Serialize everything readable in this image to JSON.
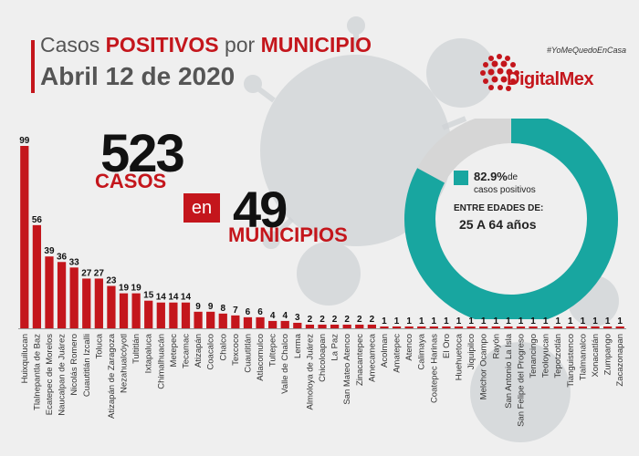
{
  "header": {
    "title_part1": "Casos ",
    "title_positivos": "POSITIVOS",
    "title_por": " por ",
    "title_municipio": "MUNICIPIO",
    "date": "Abril 12 de 2020"
  },
  "brand": {
    "hashtag": "#YoMeQuedoEnCasa",
    "name": "DigitalMex"
  },
  "summary": {
    "cases_total": "523",
    "cases_label": "CASOS",
    "connector": "en",
    "municipalities_total": "49",
    "municipalities_label": "MUNICIPIOS"
  },
  "age_stat": {
    "percent": "82.9%",
    "percent_value": 82.9,
    "label_line1": "de",
    "label_line2": "casos positivos",
    "ages_label": "ENTRE EDADES DE:",
    "ages_range": "25 A 64 años"
  },
  "colors": {
    "bar": "#c4161c",
    "donut": "#18a6a0",
    "text": "#111111",
    "virus_bg": "#cfd3d6"
  },
  "chart_data": {
    "type": "bar",
    "title": "Casos POSITIVOS por MUNICIPIO",
    "categories": [
      "Huixquilucan",
      "Tlalnepantla de Baz",
      "Ecatepec de Morelos",
      "Naucalpan de Juárez",
      "Nicolás Romero",
      "Cuautitlán Izcalli",
      "Toluca",
      "Atizapán de Zaragoza",
      "Nezahualcóyotl",
      "Tultitlán",
      "Ixtapaluca",
      "Chimalhuacán",
      "Metepec",
      "Tecamac",
      "Atizapán",
      "Coacalco",
      "Chalco",
      "Texcoco",
      "Cuautitlán",
      "Atlacomulco",
      "Tultepec",
      "Valle de Chalco",
      "Lerma",
      "Almoloya de Juárez",
      "Chicoloapan",
      "La Paz",
      "San Mateo Atenco",
      "Zinacantepec",
      "Amecameca",
      "Acolman",
      "Amatepec",
      "Atenco",
      "Calimaya",
      "Coatepec Harinas",
      "El Oro",
      "Huehuetoca",
      "Jiquipilco",
      "Melchor Ocampo",
      "Rayón",
      "San Antonio La Isla",
      "San Felipe del Progreso",
      "Tenancingo",
      "Teoloyucan",
      "Tepotzotlán",
      "Tianguistenco",
      "Tlalmanalco",
      "Xonacatlán",
      "Zumpango",
      "Zacazonapan"
    ],
    "values": [
      99,
      56,
      39,
      36,
      33,
      27,
      27,
      23,
      19,
      19,
      15,
      14,
      14,
      14,
      9,
      9,
      8,
      7,
      6,
      6,
      4,
      4,
      3,
      2,
      2,
      2,
      2,
      2,
      2,
      1,
      1,
      1,
      1,
      1,
      1,
      1,
      1,
      1,
      1,
      1,
      1,
      1,
      1,
      1,
      1,
      1,
      1,
      1,
      1
    ],
    "ylim": [
      0,
      99
    ],
    "grid": false,
    "data_labels": true
  }
}
